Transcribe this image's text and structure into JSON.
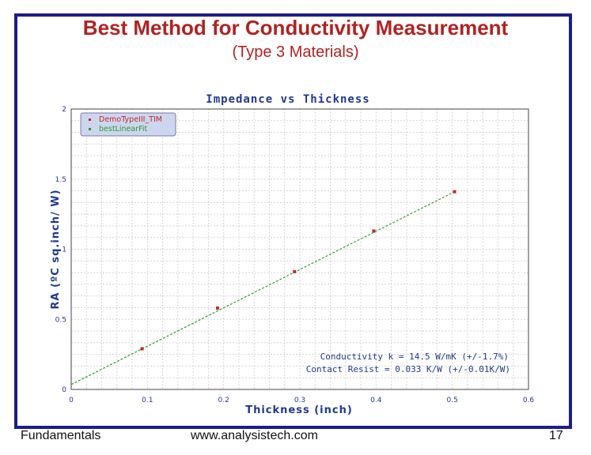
{
  "slide": {
    "title": "Best Method for Conductivity Measurement",
    "subtitle": "(Type 3 Materials)"
  },
  "chart_data": {
    "type": "scatter",
    "title": "Impedance vs Thickness",
    "xlabel": "Thickness (inch)",
    "ylabel": "RA (ºC sq.inch/ W)",
    "xlim": [
      0,
      0.6
    ],
    "ylim": [
      0,
      2
    ],
    "xticks": [
      "0",
      "0.1",
      "0.2",
      "0.3",
      "0.4",
      "0.5",
      "0.6"
    ],
    "yticks": [
      "0",
      "0.5",
      "1",
      "1.5",
      "2"
    ],
    "grid": true,
    "legend_position": "top-left",
    "series": [
      {
        "name": "DemoTypeIII_TIM",
        "kind": "points",
        "color": "#c62828",
        "points": [
          {
            "x": 0.093,
            "y": 0.29
          },
          {
            "x": 0.192,
            "y": 0.58
          },
          {
            "x": 0.293,
            "y": 0.84
          },
          {
            "x": 0.397,
            "y": 1.13
          },
          {
            "x": 0.503,
            "y": 1.41
          }
        ]
      },
      {
        "name": "bestLinearFit",
        "kind": "line",
        "color": "#2e9b2e",
        "points": [
          {
            "x": 0.0,
            "y": 0.035
          },
          {
            "x": 0.503,
            "y": 1.41
          }
        ]
      }
    ],
    "annotations": [
      "Conductivity k = 14.5 W/mK (+/-1.7%)",
      "Contact Resist = 0.033 K/W (+/-0.01K/W)"
    ],
    "colors": {
      "title": "#1f3a8c",
      "axis_label": "#1f3a8c",
      "tick": "#1f3a8c",
      "annotation": "#1f3a8c",
      "grid": "#d5d5d5",
      "legend_bg": "#ccd6ee",
      "legend_border": "#7a7aa8"
    }
  },
  "footer": {
    "left": "Fundamentals",
    "center": "www.analysistech.com",
    "page": "17"
  }
}
